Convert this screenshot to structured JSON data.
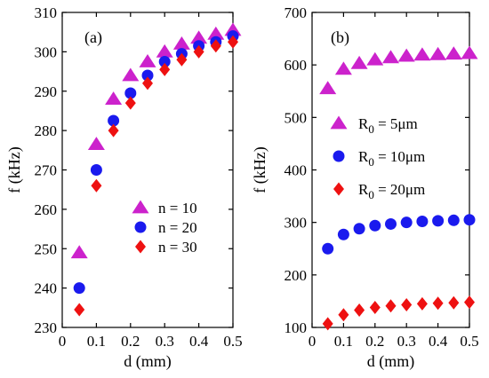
{
  "chart_data": [
    {
      "type": "scatter",
      "panel_label": "(a)",
      "xlabel": "d  (mm)",
      "ylabel": "f  (kHz)",
      "xlim": [
        0,
        0.5
      ],
      "ylim": [
        230,
        310
      ],
      "xticks": [
        0,
        0.1,
        0.2,
        0.3,
        0.4,
        0.5
      ],
      "xtick_labels": [
        "0",
        "0.1",
        "0.2",
        "0.3",
        "0.4",
        "0.5"
      ],
      "yticks": [
        230,
        240,
        250,
        260,
        270,
        280,
        290,
        300,
        310
      ],
      "ytick_labels": [
        "230",
        "240",
        "250",
        "260",
        "270",
        "280",
        "290",
        "300",
        "310"
      ],
      "legend_position": "bottom-right",
      "x": [
        0.05,
        0.1,
        0.15,
        0.2,
        0.25,
        0.3,
        0.35,
        0.4,
        0.45,
        0.5
      ],
      "series": [
        {
          "name": "n = 10",
          "marker": "triangle",
          "color": "#cc22cc",
          "values": [
            249,
            276.5,
            288,
            294,
            297.5,
            300,
            302,
            303.5,
            304.5,
            305.5
          ]
        },
        {
          "name": "n = 20",
          "marker": "circle",
          "color": "#1a1aee",
          "values": [
            240,
            270,
            282.5,
            289.5,
            294,
            297.5,
            299.5,
            301.5,
            302.5,
            304
          ]
        },
        {
          "name": "n = 30",
          "marker": "diamond",
          "color": "#ee1111",
          "values": [
            234.5,
            266,
            280,
            287,
            292,
            295.5,
            298,
            300,
            301.5,
            302.5
          ]
        }
      ]
    },
    {
      "type": "scatter",
      "panel_label": "(b)",
      "xlabel": "d  (mm)",
      "ylabel": "f  (kHz)",
      "xlim": [
        0,
        0.5
      ],
      "ylim": [
        100,
        700
      ],
      "xticks": [
        0,
        0.1,
        0.2,
        0.3,
        0.4,
        0.5
      ],
      "xtick_labels": [
        "0",
        "0.1",
        "0.2",
        "0.3",
        "0.4",
        "0.5"
      ],
      "yticks": [
        100,
        200,
        300,
        400,
        500,
        600,
        700
      ],
      "ytick_labels": [
        "100",
        "200",
        "300",
        "400",
        "500",
        "600",
        "700"
      ],
      "legend_position": "middle-right",
      "x": [
        0.05,
        0.1,
        0.15,
        0.2,
        0.25,
        0.3,
        0.35,
        0.4,
        0.45,
        0.5
      ],
      "series": [
        {
          "name": "R0 = 5μm",
          "legend_main": "R",
          "legend_sub": "0",
          "legend_rest": " = 5μm",
          "marker": "triangle",
          "color": "#cc22cc",
          "values": [
            555,
            592,
            603,
            610,
            614,
            617,
            619,
            620,
            621,
            622
          ]
        },
        {
          "name": "R0 = 10μm",
          "legend_main": "R",
          "legend_sub": "0",
          "legend_rest": " = 10μm",
          "marker": "circle",
          "color": "#1a1aee",
          "values": [
            250,
            277,
            288,
            294,
            297,
            300,
            302,
            303,
            304,
            305
          ]
        },
        {
          "name": "R0 = 20μm",
          "legend_main": "R",
          "legend_sub": "0",
          "legend_rest": " = 20μm",
          "marker": "diamond",
          "color": "#ee1111",
          "values": [
            107,
            124,
            133,
            138,
            141,
            143,
            145,
            146,
            147,
            148
          ]
        }
      ]
    }
  ]
}
